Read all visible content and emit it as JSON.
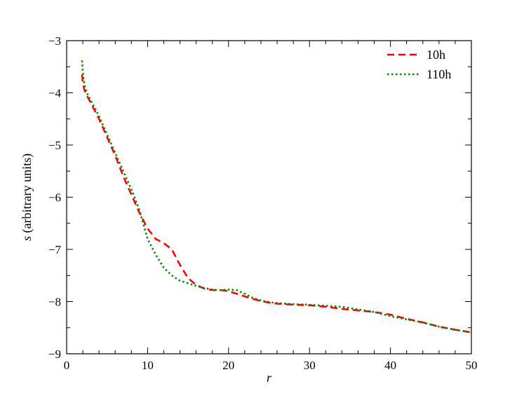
{
  "chart_data": {
    "type": "line",
    "xlabel": "r",
    "ylabel_symbol": "s",
    "ylabel_rest": " (arbitrary units)",
    "xlim": [
      0,
      50
    ],
    "ylim": [
      -9,
      -3
    ],
    "xticks": [
      0,
      10,
      20,
      30,
      40,
      50
    ],
    "yticks": [
      -9,
      -8,
      -7,
      -6,
      -5,
      -4,
      -3
    ],
    "grid": false,
    "legend_position": "top-right",
    "series": [
      {
        "name": "10h",
        "color": "#ff0000",
        "style": "dashed",
        "x": [
          1.9,
          2.0,
          2.2,
          2.5,
          3,
          4,
          5,
          6,
          7,
          8,
          9,
          10,
          11,
          12,
          13,
          14,
          15,
          16,
          17,
          18,
          19,
          20,
          21,
          22,
          23,
          24,
          25,
          26,
          28,
          30,
          32,
          34,
          36,
          38,
          40,
          42,
          44,
          46,
          48,
          50
        ],
        "y": [
          -3.65,
          -3.8,
          -3.95,
          -4.05,
          -4.2,
          -4.5,
          -4.85,
          -5.2,
          -5.6,
          -5.95,
          -6.3,
          -6.6,
          -6.8,
          -6.88,
          -7.0,
          -7.3,
          -7.55,
          -7.68,
          -7.75,
          -7.78,
          -7.78,
          -7.8,
          -7.85,
          -7.9,
          -7.95,
          -7.99,
          -8.02,
          -8.04,
          -8.06,
          -8.07,
          -8.1,
          -8.14,
          -8.17,
          -8.2,
          -8.25,
          -8.33,
          -8.4,
          -8.48,
          -8.54,
          -8.59
        ]
      },
      {
        "name": "110h",
        "color": "#008800",
        "style": "dotted",
        "x": [
          1.9,
          2.0,
          2.2,
          2.5,
          3,
          4,
          5,
          6,
          7,
          8,
          9,
          10,
          11,
          12,
          13,
          14,
          15,
          16,
          17,
          18,
          19,
          20,
          21,
          22,
          23,
          24,
          25,
          26,
          28,
          30,
          32,
          34,
          36,
          38,
          40,
          42,
          44,
          46,
          48,
          50
        ],
        "y": [
          -3.38,
          -3.6,
          -3.85,
          -4.0,
          -4.15,
          -4.45,
          -4.8,
          -5.15,
          -5.5,
          -5.85,
          -6.25,
          -6.8,
          -7.1,
          -7.35,
          -7.5,
          -7.6,
          -7.65,
          -7.7,
          -7.74,
          -7.77,
          -7.78,
          -7.77,
          -7.78,
          -7.85,
          -7.93,
          -7.98,
          -8.01,
          -8.03,
          -8.05,
          -8.06,
          -8.08,
          -8.1,
          -8.15,
          -8.2,
          -8.28,
          -8.34,
          -8.4,
          -8.48,
          -8.54,
          -8.59
        ]
      }
    ]
  }
}
